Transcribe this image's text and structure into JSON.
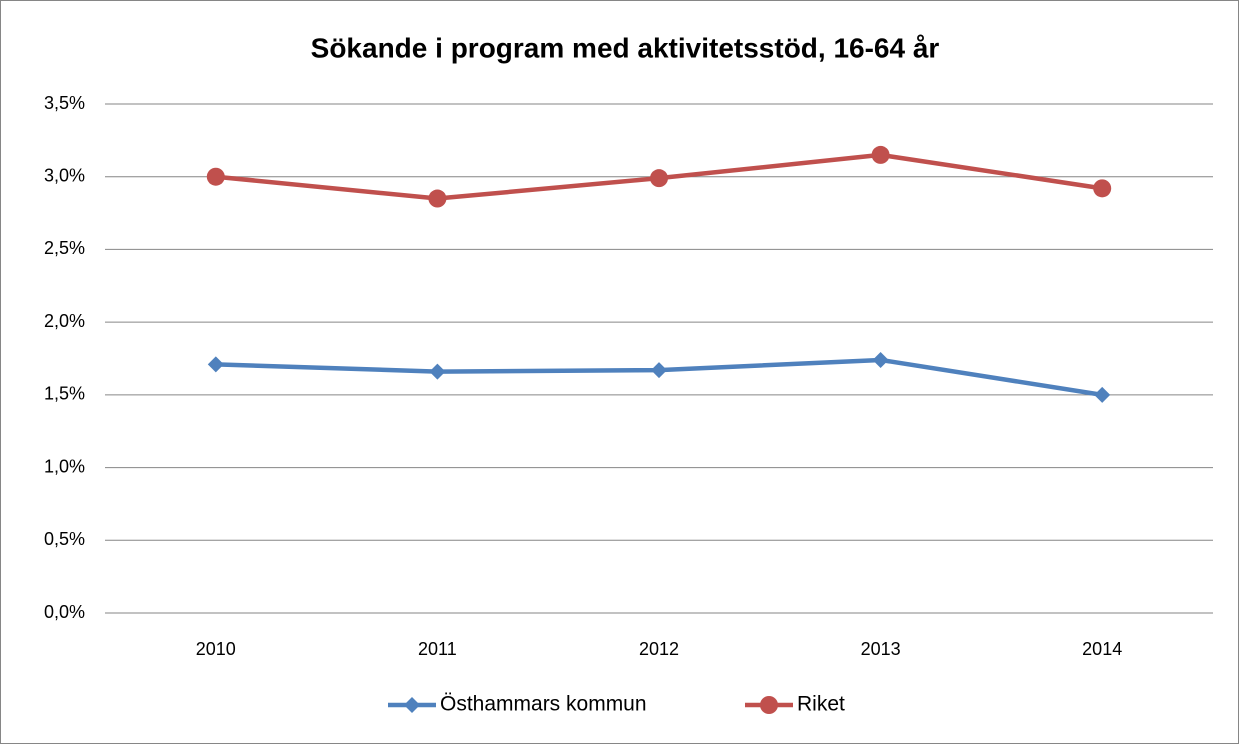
{
  "chart_data": {
    "type": "line",
    "title": "Sökande i program med aktivitetsstöd, 16-64 år",
    "categories": [
      "2010",
      "2011",
      "2012",
      "2013",
      "2014"
    ],
    "series": [
      {
        "name": "Östhammars kommun",
        "color": "#4f81bd",
        "marker": "diamond",
        "values": [
          1.71,
          1.66,
          1.67,
          1.74,
          1.5
        ]
      },
      {
        "name": "Riket",
        "color": "#c0504d",
        "marker": "circle",
        "values": [
          3.0,
          2.85,
          2.99,
          3.15,
          2.92
        ]
      }
    ],
    "ylim": [
      0,
      3.5
    ],
    "yticks": [
      {
        "value": 0,
        "label": "0,0%"
      },
      {
        "value": 0.5,
        "label": "0,5%"
      },
      {
        "value": 1,
        "label": "1,0%"
      },
      {
        "value": 1.5,
        "label": "1,5%"
      },
      {
        "value": 2,
        "label": "2,0%"
      },
      {
        "value": 2.5,
        "label": "2,5%"
      },
      {
        "value": 3,
        "label": "3,0%"
      },
      {
        "value": 3.5,
        "label": "3,5%"
      }
    ],
    "grid": true,
    "legend": "bottom"
  }
}
